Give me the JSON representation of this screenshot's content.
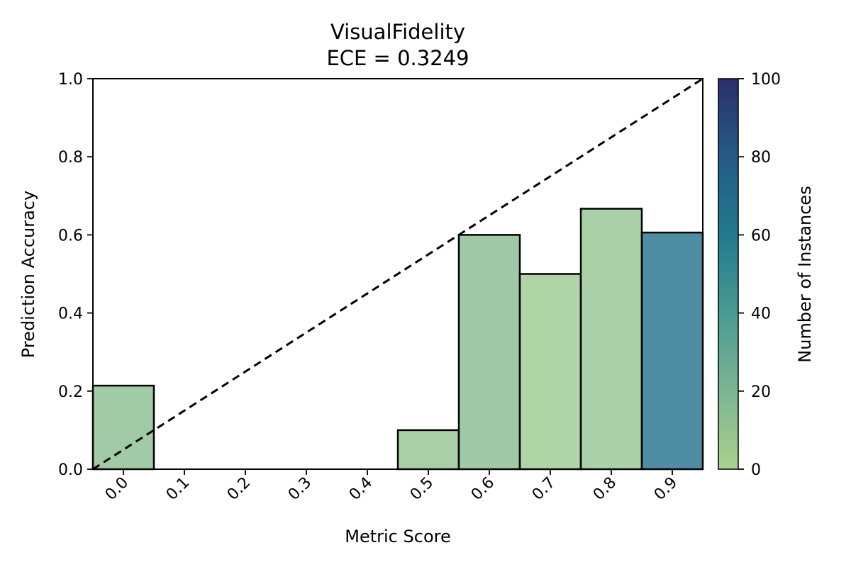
{
  "chart_data": {
    "type": "bar",
    "title": "VisualFidelity",
    "subtitle": "ECE = 0.3249",
    "xlabel": "Metric Score",
    "ylabel": "Prediction Accuracy",
    "categories": [
      "0.0",
      "0.1",
      "0.2",
      "0.3",
      "0.4",
      "0.5",
      "0.6",
      "0.7",
      "0.8",
      "0.9"
    ],
    "x": [
      0.0,
      0.1,
      0.2,
      0.3,
      0.4,
      0.5,
      0.6,
      0.7,
      0.8,
      0.9
    ],
    "bin_width": 0.1,
    "values": [
      0.214,
      0.0,
      0.0,
      0.0,
      0.0,
      0.1,
      0.6,
      0.5,
      0.667,
      0.606
    ],
    "counts": [
      14,
      0,
      0,
      0,
      0,
      10,
      15,
      6,
      9,
      66
    ],
    "xlim": [
      -0.05,
      0.95
    ],
    "ylim": [
      0,
      1
    ],
    "yticks": [
      "0.0",
      "0.2",
      "0.4",
      "0.6",
      "0.8",
      "1.0"
    ],
    "reference_line": {
      "from": [
        -0.05,
        0
      ],
      "to": [
        0.95,
        1
      ],
      "style": "dashed",
      "color": "#000000"
    },
    "grid": false,
    "colorbar": {
      "label": "Number of Instances",
      "range": [
        0,
        100
      ],
      "ticks": [
        "0",
        "20",
        "40",
        "60",
        "80",
        "100"
      ],
      "colors": [
        "#a9d18f",
        "#7bb591",
        "#4a9a92",
        "#217a8e",
        "#255b86",
        "#2c2f6b"
      ]
    },
    "bar_alpha": 0.8,
    "bar_edge_color": "#000000"
  }
}
